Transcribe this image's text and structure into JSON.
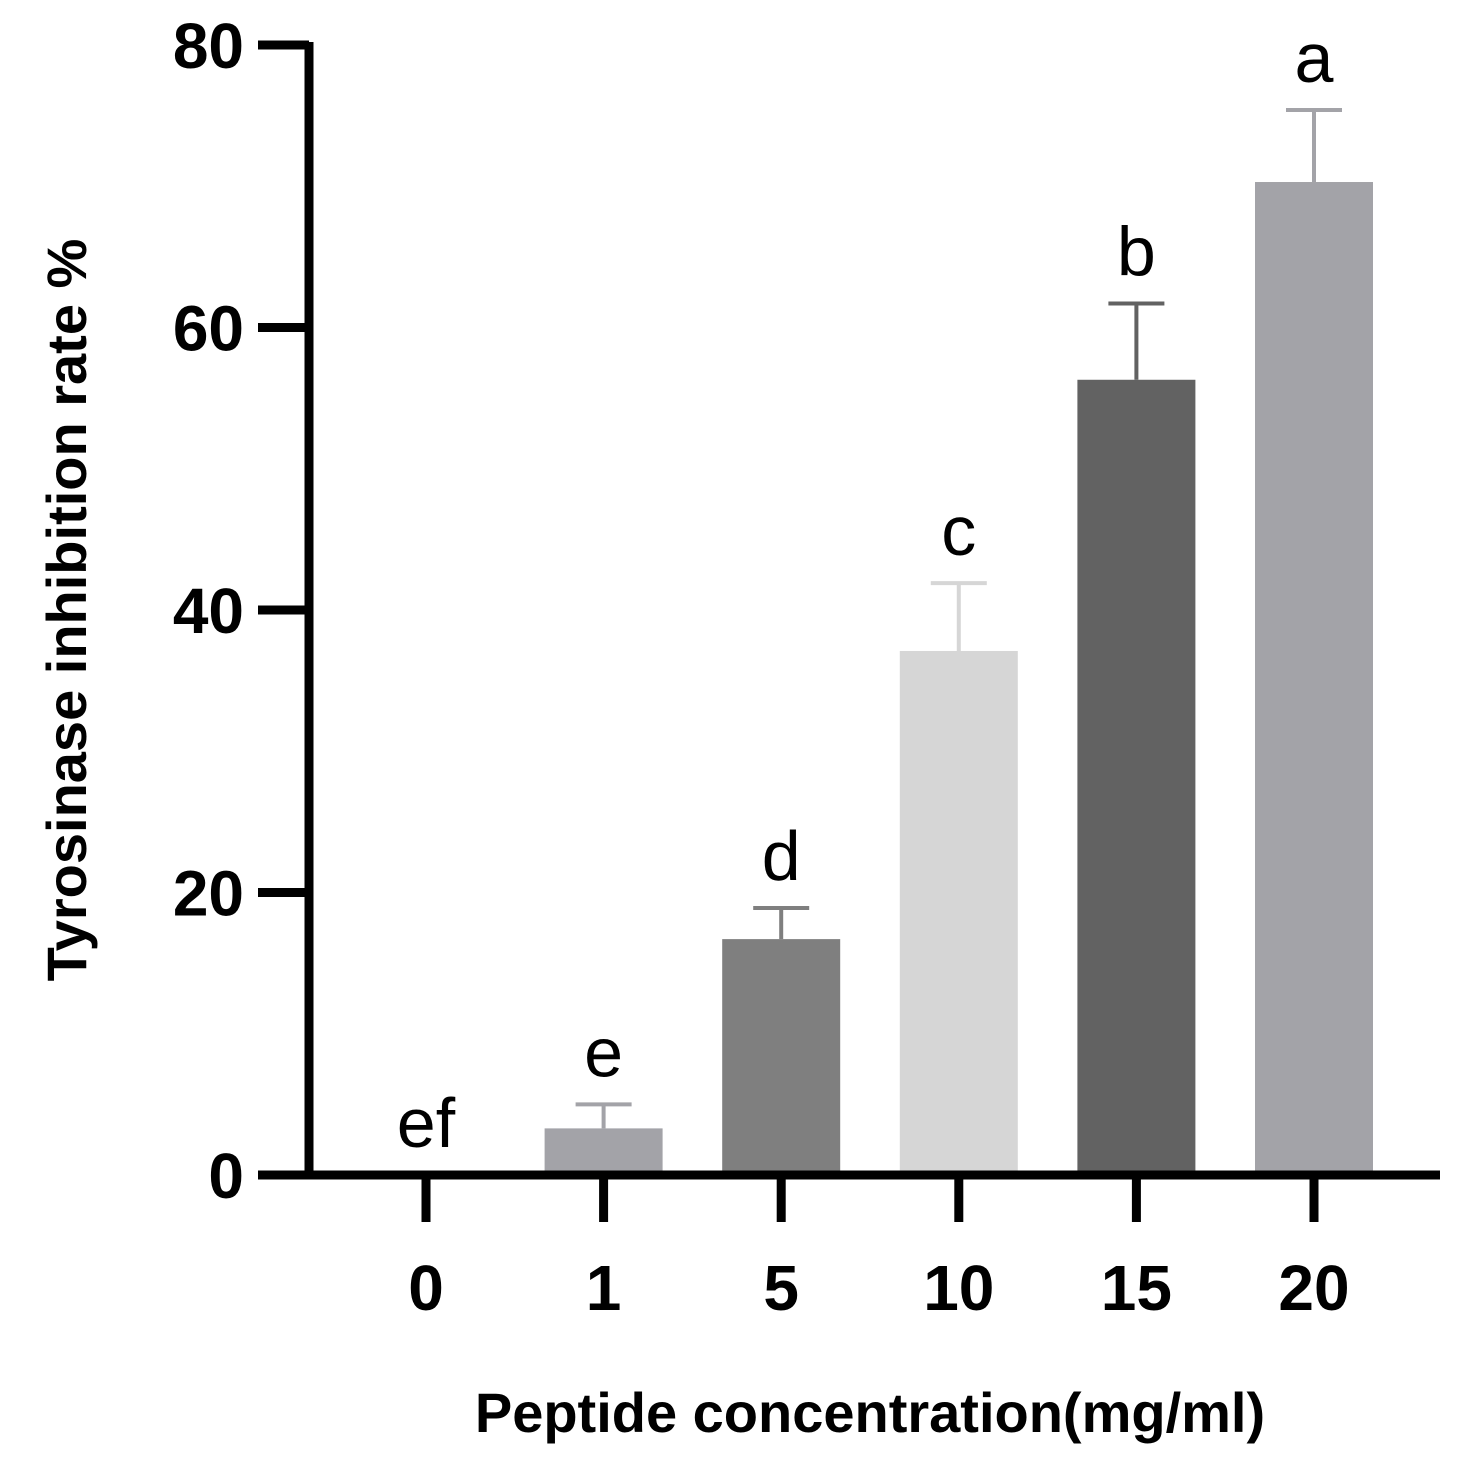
{
  "chart_data": {
    "type": "bar",
    "title": "",
    "xlabel": "Peptide concentration(mg/ml)",
    "ylabel": "Tyrosinase inhibition rate %",
    "categories": [
      "0",
      "1",
      "5",
      "10",
      "15",
      "20"
    ],
    "values": [
      0,
      3.3,
      16.7,
      37.1,
      56.3,
      70.3
    ],
    "errors": [
      0,
      1.7,
      2.2,
      4.8,
      5.4,
      5.1
    ],
    "significance": [
      "ef",
      "e",
      "d",
      "c",
      "b",
      "a"
    ],
    "colors": [
      "#a3a3a8",
      "#a3a3a8",
      "#7f7f7f",
      "#d6d6d6",
      "#626262",
      "#a3a3a8"
    ],
    "ylim": [
      0,
      80
    ],
    "yticks": [
      0,
      20,
      40,
      60,
      80
    ],
    "grid": false,
    "legend": "none"
  }
}
